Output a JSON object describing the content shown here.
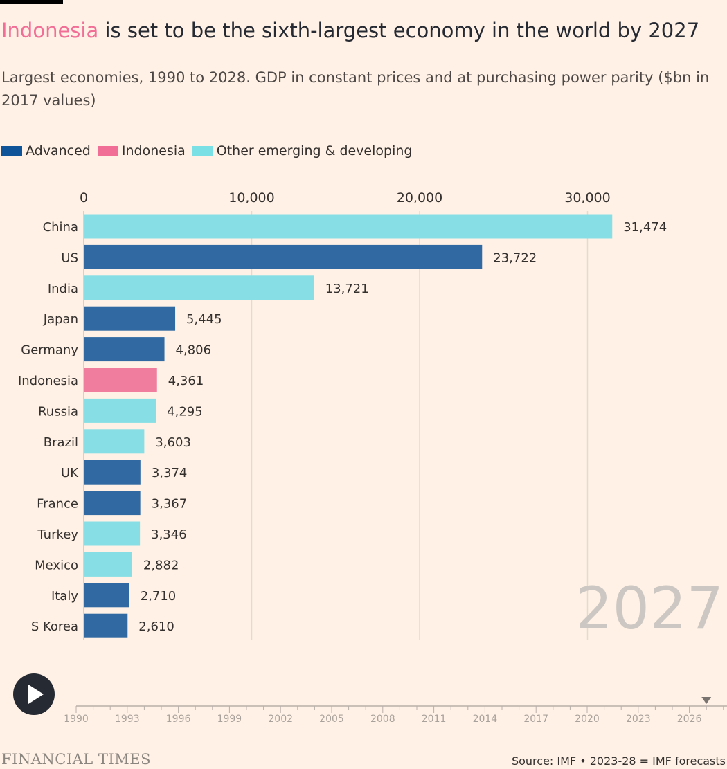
{
  "header": {
    "title_highlight": "Indonesia",
    "title_rest": " is set to be the sixth-largest economy in the world by 2027",
    "subtitle": "Largest economies, 1990 to 2028. GDP in constant prices and at purchasing power parity ($bn in 2017 values)"
  },
  "legend": [
    {
      "label": "Advanced",
      "color": "#0f5499"
    },
    {
      "label": "Indonesia",
      "color": "#f16f96"
    },
    {
      "label": "Other emerging & developing",
      "color": "#7ae0e6"
    }
  ],
  "chart_data": {
    "type": "bar",
    "orientation": "horizontal",
    "year_label": "2027",
    "xlim": [
      0,
      33000
    ],
    "x_ticks": [
      0,
      10000,
      20000,
      30000
    ],
    "x_tick_labels": [
      "0",
      "10,000",
      "20,000",
      "30,000"
    ],
    "grid": true,
    "categories": [
      "China",
      "US",
      "India",
      "Japan",
      "Germany",
      "Indonesia",
      "Russia",
      "Brazil",
      "UK",
      "France",
      "Turkey",
      "Mexico",
      "Italy",
      "S Korea"
    ],
    "values": [
      31474,
      23722,
      13721,
      5445,
      4806,
      4361,
      4295,
      3603,
      3374,
      3367,
      3346,
      2882,
      2710,
      2610
    ],
    "value_labels": [
      "31,474",
      "23,722",
      "13,721",
      "5,445",
      "4,806",
      "4,361",
      "4,295",
      "3,603",
      "3,374",
      "3,367",
      "3,346",
      "2,882",
      "2,710",
      "2,610"
    ],
    "groups": [
      "Other emerging & developing",
      "Advanced",
      "Other emerging & developing",
      "Advanced",
      "Advanced",
      "Indonesia",
      "Other emerging & developing",
      "Other emerging & developing",
      "Advanced",
      "Advanced",
      "Other emerging & developing",
      "Other emerging & developing",
      "Advanced",
      "Advanced"
    ],
    "group_colors": {
      "Advanced": "#316aa3",
      "Indonesia": "#f07c9e",
      "Other emerging & developing": "#87dfe5"
    }
  },
  "timeline": {
    "start_year": 1990,
    "end_year": 2028,
    "current_year": 2027,
    "labels": [
      "1990",
      "1993",
      "1996",
      "1999",
      "2002",
      "2005",
      "2008",
      "2011",
      "2014",
      "2017",
      "2020",
      "2023",
      "2026"
    ]
  },
  "controls": {
    "play_icon": "play-icon"
  },
  "footer": {
    "logo_text": "FINANCIAL TIMES",
    "source": "Source: IMF • 2023-28 = IMF forecasts"
  }
}
